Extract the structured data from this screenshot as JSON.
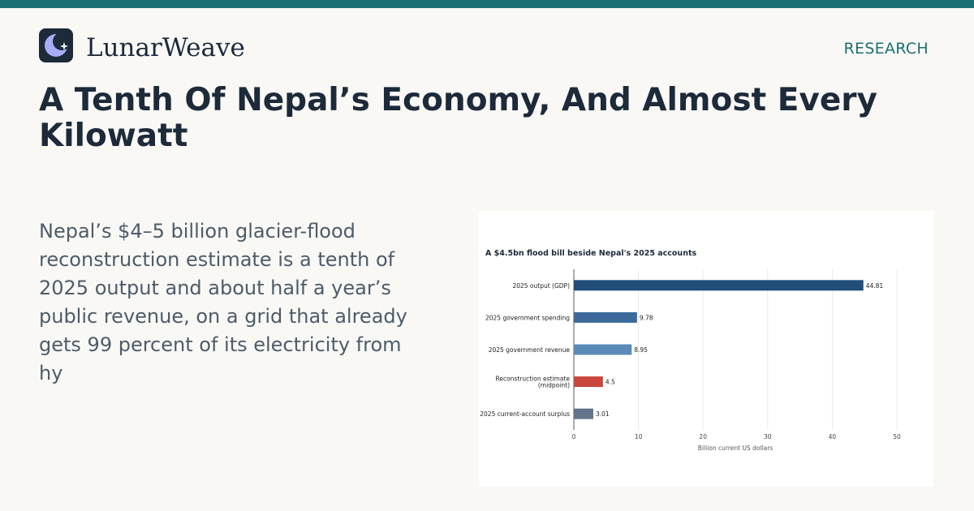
{
  "header": {
    "brand": "LunarWeave",
    "section": "RESEARCH",
    "logo_icon": "crescent-moon-star-icon"
  },
  "article": {
    "headline": "A Tenth Of Nepal’s Economy, And Almost Every Kilowatt",
    "dek": "Nepal’s $4–5 billion glacier-flood reconstruction estimate is a tenth of 2025 output and about half a year’s public revenue, on a grid that already gets 99 percent of its electricity from hy"
  },
  "colors": {
    "accent": "#1b6f73",
    "ink": "#1c2a3a",
    "background": "#f9f8f5"
  },
  "chart_data": {
    "type": "bar",
    "orientation": "horizontal",
    "title": "A $4.5bn flood bill beside Nepal's 2025 accounts",
    "xlabel": "Billion current US dollars",
    "ylabel": "",
    "xlim": [
      0,
      50
    ],
    "xticks": [
      0,
      10,
      20,
      30,
      40,
      50
    ],
    "grid": true,
    "categories": [
      "2025 output (GDP)",
      "2025 government spending",
      "2025 government revenue",
      "Reconstruction estimate (midpoint)",
      "2025 current-account surplus"
    ],
    "category_lines": [
      [
        "2025 output (GDP)"
      ],
      [
        "2025 government spending"
      ],
      [
        "2025 government revenue"
      ],
      [
        "Reconstruction estimate",
        "(midpoint)"
      ],
      [
        "2025 current-account surplus"
      ]
    ],
    "values": [
      44.81,
      9.78,
      8.95,
      4.5,
      3.01
    ],
    "value_labels": [
      "44.81",
      "9.78",
      "8.95",
      "4.5",
      "3.01"
    ],
    "bar_colors": [
      "#1f4e79",
      "#3b6a9a",
      "#5a8bb8",
      "#c9463d",
      "#64748b"
    ]
  }
}
